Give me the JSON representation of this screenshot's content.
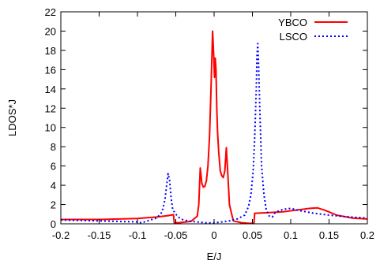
{
  "chart_data": {
    "type": "line",
    "title": "",
    "xlabel": "E/J",
    "ylabel": "LDOS*J",
    "xlim": [
      -0.2,
      0.2
    ],
    "ylim": [
      0,
      22
    ],
    "xticks": [
      "-0.2",
      "-0.15",
      "-0.1",
      "-0.05",
      "0",
      "0.05",
      "0.1",
      "0.15",
      "0.2"
    ],
    "yticks": [
      "0",
      "2",
      "4",
      "6",
      "8",
      "10",
      "12",
      "14",
      "16",
      "18",
      "20",
      "22"
    ],
    "grid": false,
    "legend_position": "top-right",
    "series": [
      {
        "name": "YBCO",
        "color": "#ff0000",
        "style": "solid",
        "x": [
          -0.2,
          -0.15,
          -0.1,
          -0.075,
          -0.06,
          -0.053,
          -0.052,
          -0.045,
          -0.03,
          -0.022,
          -0.02,
          -0.018,
          -0.016,
          -0.014,
          -0.012,
          -0.01,
          -0.008,
          -0.006,
          -0.004,
          -0.002,
          -0.0005,
          0.0005,
          0.0015,
          0.0025,
          0.0035,
          0.0045,
          0.006,
          0.008,
          0.01,
          0.012,
          0.014,
          0.016,
          0.018,
          0.02,
          0.025,
          0.035,
          0.045,
          0.052,
          0.053,
          0.07,
          0.09,
          0.11,
          0.125,
          0.135,
          0.145,
          0.16,
          0.18,
          0.2
        ],
        "y": [
          0.45,
          0.45,
          0.55,
          0.7,
          0.85,
          0.95,
          0.1,
          0.12,
          0.25,
          0.8,
          2.0,
          5.8,
          4.2,
          3.8,
          3.9,
          4.5,
          6.0,
          9.0,
          14.0,
          20.0,
          17.5,
          15.2,
          17.2,
          16.0,
          12.0,
          9.5,
          7.5,
          5.5,
          5.0,
          4.8,
          5.5,
          7.9,
          5.0,
          2.0,
          0.3,
          0.12,
          0.05,
          0.05,
          1.1,
          1.15,
          1.25,
          1.45,
          1.6,
          1.65,
          1.4,
          0.9,
          0.6,
          0.5
        ]
      },
      {
        "name": "LSCO",
        "color": "#0000ff",
        "style": "dotted",
        "x": [
          -0.2,
          -0.15,
          -0.1,
          -0.095,
          -0.085,
          -0.075,
          -0.068,
          -0.064,
          -0.062,
          -0.06,
          -0.058,
          -0.056,
          -0.054,
          -0.05,
          -0.045,
          -0.04,
          -0.03,
          -0.01,
          0.0,
          0.01,
          0.02,
          0.03,
          0.04,
          0.045,
          0.048,
          0.051,
          0.053,
          0.055,
          0.056,
          0.057,
          0.058,
          0.06,
          0.062,
          0.065,
          0.068,
          0.072,
          0.076,
          0.08,
          0.09,
          0.095,
          0.1,
          0.11,
          0.13,
          0.15,
          0.17,
          0.2
        ],
        "y": [
          0.4,
          0.3,
          0.2,
          0.1,
          0.35,
          0.6,
          1.2,
          2.5,
          4.0,
          5.2,
          4.5,
          2.6,
          1.5,
          1.0,
          0.6,
          0.4,
          0.25,
          0.1,
          0.1,
          0.2,
          0.3,
          0.5,
          0.9,
          1.8,
          3.0,
          5.5,
          9.0,
          14.0,
          17.5,
          18.7,
          16.5,
          11.0,
          6.0,
          3.0,
          1.5,
          0.8,
          0.7,
          1.2,
          1.5,
          1.55,
          1.6,
          1.4,
          1.1,
          0.9,
          0.75,
          0.6
        ]
      }
    ]
  }
}
